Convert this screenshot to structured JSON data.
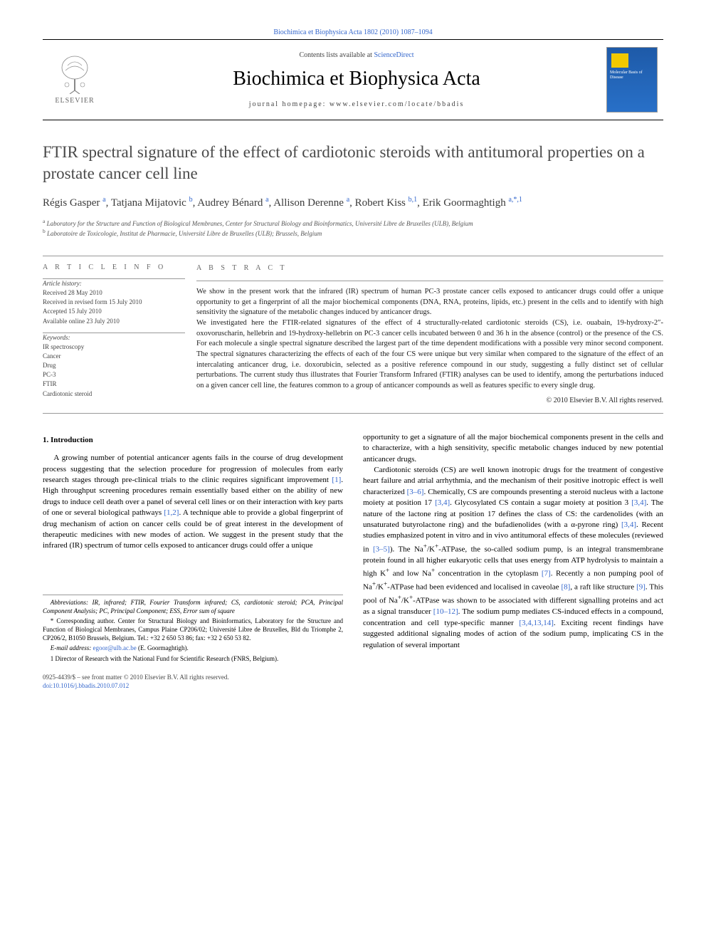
{
  "journal_header": "Biochimica et Biophysica Acta 1802 (2010) 1087–1094",
  "masthead": {
    "contents_lists": "Contents lists available at ",
    "contents_link": "ScienceDirect",
    "journal_title": "Biochimica et Biophysica Acta",
    "homepage": "journal homepage: www.elsevier.com/locate/bbadis",
    "publisher": "ELSEVIER",
    "cover_text": "Molecular Basis of Disease"
  },
  "article": {
    "title": "FTIR spectral signature of the effect of cardiotonic steroids with antitumoral properties on a prostate cancer cell line",
    "authors_html": "Régis Gasper <sup>a</sup>, Tatjana Mijatovic <sup>b</sup>, Audrey Bénard <sup>a</sup>, Allison Derenne <sup>a</sup>, Robert Kiss <sup>b,1</sup>, Erik Goormaghtigh <sup>a,*,1</sup>",
    "affiliations": {
      "a": "Laboratory for the Structure and Function of Biological Membranes, Center for Structural Biology and Bioinformatics, Université Libre de Bruxelles (ULB), Belgium",
      "b": "Laboratoire de Toxicologie, Institut de Pharmacie, Université Libre de Bruxelles (ULB); Brussels, Belgium"
    }
  },
  "article_info": {
    "heading": "A R T I C L E   I N F O",
    "history_head": "Article history:",
    "received": "Received 28 May 2010",
    "revised": "Received in revised form 15 July 2010",
    "accepted": "Accepted 15 July 2010",
    "online": "Available online 23 July 2010",
    "keywords_head": "Keywords:",
    "keywords": [
      "IR spectroscopy",
      "Cancer",
      "Drug",
      "PC-3",
      "FTIR",
      "Cardiotonic steroid"
    ]
  },
  "abstract": {
    "heading": "A B S T R A C T",
    "p1": "We show in the present work that the infrared (IR) spectrum of human PC-3 prostate cancer cells exposed to anticancer drugs could offer a unique opportunity to get a fingerprint of all the major biochemical components (DNA, RNA, proteins, lipids, etc.) present in the cells and to identify with high sensitivity the signature of the metabolic changes induced by anticancer drugs.",
    "p2": "We investigated here the FTIR-related signatures of the effect of 4 structurally-related cardiotonic steroids (CS), i.e. ouabain, 19-hydroxy-2″-oxovoruscharin, hellebrin and 19-hydroxy-hellebrin on PC-3 cancer cells incubated between 0 and 36 h in the absence (control) or the presence of the CS. For each molecule a single spectral signature described the largest part of the time dependent modifications with a possible very minor second component. The spectral signatures characterizing the effects of each of the four CS were unique but very similar when compared to the signature of the effect of an intercalating anticancer drug, i.e. doxorubicin, selected as a positive reference compound in our study, suggesting a fully distinct set of cellular perturbations. The current study thus illustrates that Fourier Transform Infrared (FTIR) analyses can be used to identify, among the perturbations induced on a given cancer cell line, the features common to a group of anticancer compounds as well as features specific to every single drug.",
    "copyright": "© 2010 Elsevier B.V. All rights reserved."
  },
  "body": {
    "section_heading": "1. Introduction",
    "col1_p1": "A growing number of potential anticancer agents fails in the course of drug development process suggesting that the selection procedure for progression of molecules from early research stages through pre-clinical trials to the clinic requires significant improvement [1]. High throughput screening procedures remain essentially based either on the ability of new drugs to induce cell death over a panel of several cell lines or on their interaction with key parts of one or several biological pathways [1,2]. A technique able to provide a global fingerprint of drug mechanism of action on cancer cells could be of great interest in the development of therapeutic medicines with new modes of action. We suggest in the present study that the infrared (IR) spectrum of tumor cells exposed to anticancer drugs could offer a unique",
    "col2_p1": "opportunity to get a signature of all the major biochemical components present in the cells and to characterize, with a high sensitivity, specific metabolic changes induced by new potential anticancer drugs.",
    "col2_p2": "Cardiotonic steroids (CS) are well known inotropic drugs for the treatment of congestive heart failure and atrial arrhythmia, and the mechanism of their positive inotropic effect is well characterized [3–6]. Chemically, CS are compounds presenting a steroid nucleus with a lactone moiety at position 17 [3,4]. Glycosylated CS contain a sugar moiety at position 3 [3,4]. The nature of the lactone ring at position 17 defines the class of CS: the cardenolides (with an unsaturated butyrolactone ring) and the bufadienolides (with a α-pyrone ring) [3,4]. Recent studies emphasized potent in vitro and in vivo antitumoral effects of these molecules (reviewed in [3–5]). The Na+/K+-ATPase, the so-called sodium pump, is an integral transmembrane protein found in all higher eukaryotic cells that uses energy from ATP hydrolysis to maintain a high K+ and low Na+ concentration in the cytoplasm [7]. Recently a non pumping pool of Na+/K+-ATPase had been evidenced and localised in caveolae [8], a raft like structure [9]. This pool of Na+/K+-ATPase was shown to be associated with different signalling proteins and act as a signal transducer [10–12]. The sodium pump mediates CS-induced effects in a compound, concentration and cell type-specific manner [3,4,13,14]. Exciting recent findings have suggested additional signaling modes of action of the sodium pump, implicating CS in the regulation of several important"
  },
  "footnotes": {
    "abbrev": "Abbreviations: IR, infrared; FTIR, Fourier Transform infrared; CS, cardiotonic steroid; PCA, Principal Component Analysis; PC, Principal Component; ESS, Error sum of square",
    "corr": "* Corresponding author. Center for Structural Biology and Bioinformatics, Laboratory for the Structure and Function of Biological Membranes, Campus Plaine CP206/02; Université Libre de Bruxelles, Bld du Triomphe 2, CP206/2, B1050 Brussels, Belgium. Tel.: +32 2 650 53 86; fax: +32 2 650 53 82.",
    "email_label": "E-mail address:",
    "email": "egoor@ulb.ac.be",
    "email_name": "(E. Goormaghtigh).",
    "note1": "1 Director of Research with the National Fund for Scientific Research (FNRS, Belgium)."
  },
  "footer": {
    "front_matter": "0925-4439/$ – see front matter © 2010 Elsevier B.V. All rights reserved.",
    "doi": "doi:10.1016/j.bbadis.2010.07.012"
  },
  "colors": {
    "link": "#3366cc",
    "text": "#000000",
    "muted": "#555555",
    "cover_bg": "#1e5aa8"
  }
}
